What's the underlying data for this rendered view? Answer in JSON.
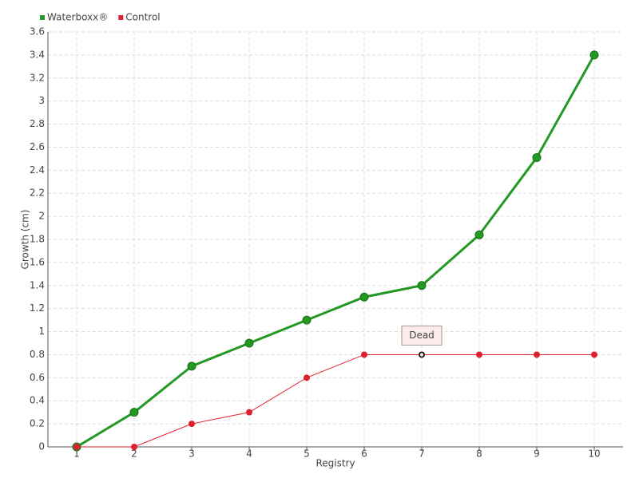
{
  "chart_data": {
    "type": "line",
    "categories": [
      "1",
      "2",
      "3",
      "4",
      "5",
      "6",
      "7",
      "8",
      "9",
      "10"
    ],
    "series": [
      {
        "name": "Waterboxx®",
        "color": "#229922",
        "values": [
          0,
          0.3,
          0.7,
          0.9,
          1.1,
          1.3,
          1.4,
          1.84,
          2.51,
          3.4
        ]
      },
      {
        "name": "Control",
        "color": "#e0202c",
        "values": [
          0,
          0,
          0.2,
          0.3,
          0.6,
          0.8,
          0.8,
          0.8,
          0.8,
          0.8
        ]
      }
    ],
    "ylim": [
      0,
      3.6
    ],
    "yticks": [
      0,
      0.2,
      0.4,
      0.6,
      0.8,
      1,
      1.2,
      1.4,
      1.6,
      1.8,
      2,
      2.2,
      2.4,
      2.6,
      2.8,
      3,
      3.2,
      3.4,
      3.6
    ],
    "xlabel": "Registry",
    "ylabel": "Growth (cm)",
    "annotation": {
      "text": "Dead",
      "series": 1,
      "index": 6
    },
    "grid": true
  }
}
